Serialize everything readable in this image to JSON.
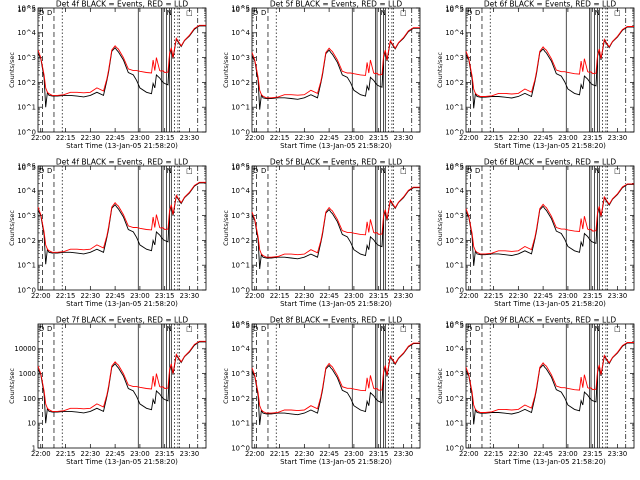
{
  "chart_data": {
    "type": "line",
    "layout": "3x3 grid of log-scale time-series panels",
    "y_scale": "log",
    "ylim": [
      1,
      100000
    ],
    "xlim": [
      "21:58:20",
      "23:40"
    ],
    "x_ticks": [
      "22:00",
      "22:15",
      "22:30",
      "22:45",
      "23:00",
      "23:15",
      "23:30"
    ],
    "y_ticks_exponent": [
      "10^0",
      "10^1",
      "10^2",
      "10^3",
      "10^4",
      "10^5"
    ],
    "y_ticks_plain": [
      "1",
      "10",
      "100",
      "1000",
      "10000"
    ],
    "xlabel": "Start Time (13-Jan-05 21:58:20)",
    "ylabel": "Counts/sec",
    "colors": {
      "events": "#000000",
      "lld": "#ff0000"
    },
    "time_axis": [
      "21:58:20",
      "22:00",
      "22:02",
      "22:03",
      "22:04",
      "22:05",
      "22:07",
      "22:10",
      "22:14",
      "22:18",
      "22:22",
      "22:26",
      "22:30",
      "22:34",
      "22:38",
      "22:40",
      "22:41",
      "22:43",
      "22:45",
      "22:46",
      "22:47",
      "22:50",
      "22:53",
      "22:56",
      "22:58",
      "23:00",
      "23:04",
      "23:07",
      "23:08",
      "23:09",
      "23:10",
      "23:12",
      "23:13",
      "23:14",
      "23:15",
      "23:17",
      "23:18",
      "23:19",
      "23:20",
      "23:22",
      "23:25",
      "23:27",
      "23:30",
      "23:33",
      "23:36",
      "23:40"
    ],
    "lld_template": [
      2000,
      1000,
      200,
      60,
      40,
      35,
      30,
      30,
      32,
      40,
      40,
      38,
      40,
      60,
      45,
      140,
      300,
      2000,
      3000,
      2500,
      2200,
      1000,
      350,
      300,
      300,
      280,
      250,
      240,
      800,
      300,
      1000,
      300,
      280,
      300,
      250,
      260,
      1500,
      2500,
      1000,
      6000,
      3000,
      5000,
      8000,
      15000,
      20000,
      20000
    ],
    "events_template": [
      1500,
      900,
      150,
      10,
      40,
      30,
      28,
      28,
      30,
      30,
      28,
      26,
      30,
      40,
      30,
      120,
      250,
      1800,
      2500,
      2000,
      1700,
      800,
      250,
      200,
      120,
      60,
      40,
      35,
      90,
      60,
      200,
      150,
      120,
      100,
      90,
      80,
      1300,
      2300,
      900,
      5500,
      2800,
      4800,
      7500,
      14000,
      19000,
      19000
    ],
    "vlines": [
      {
        "t": "22:01",
        "style": "dashed"
      },
      {
        "t": "22:08",
        "style": "dashed"
      },
      {
        "t": "22:13",
        "style": "dotted"
      },
      {
        "t": "22:59",
        "style": "solid"
      },
      {
        "t": "23:13",
        "style": "solid"
      },
      {
        "t": "23:14",
        "style": "solid"
      },
      {
        "t": "23:16",
        "style": "solid"
      },
      {
        "t": "23:18",
        "style": "solid"
      },
      {
        "t": "23:19",
        "style": "solid"
      },
      {
        "t": "23:21",
        "style": "dotted"
      },
      {
        "t": "23:23",
        "style": "dotted"
      },
      {
        "t": "23:24",
        "style": "dotted"
      },
      {
        "t": "23:35",
        "style": "dashdot"
      }
    ],
    "panel_markers": [
      "D",
      "D",
      "N",
      "□"
    ],
    "panels": [
      {
        "title": "Det 4f BLACK = Events, RED = LLD",
        "ytick_style": "exp",
        "scale": 1.0
      },
      {
        "title": "Det 5f BLACK = Events, RED = LLD",
        "ytick_style": "exp",
        "scale": 0.8
      },
      {
        "title": "Det 6f BLACK = Events, RED = LLD",
        "ytick_style": "exp",
        "scale": 0.9
      },
      {
        "title": "Det 4f BLACK = Events, RED = LLD",
        "ytick_style": "exp",
        "scale": 1.1
      },
      {
        "title": "Det 5f BLACK = Events, RED = LLD",
        "ytick_style": "exp",
        "scale": 0.7
      },
      {
        "title": "Det 6f BLACK = Events, RED = LLD",
        "ytick_style": "exp",
        "scale": 0.95
      },
      {
        "title": "Det 7f BLACK = Events, RED = LLD",
        "ytick_style": "plain",
        "scale": 1.0
      },
      {
        "title": "Det 8f BLACK = Events, RED = LLD",
        "ytick_style": "exp",
        "scale": 0.85
      },
      {
        "title": "Det 9f BLACK = Events, RED = LLD",
        "ytick_style": "exp",
        "scale": 0.9
      }
    ]
  }
}
